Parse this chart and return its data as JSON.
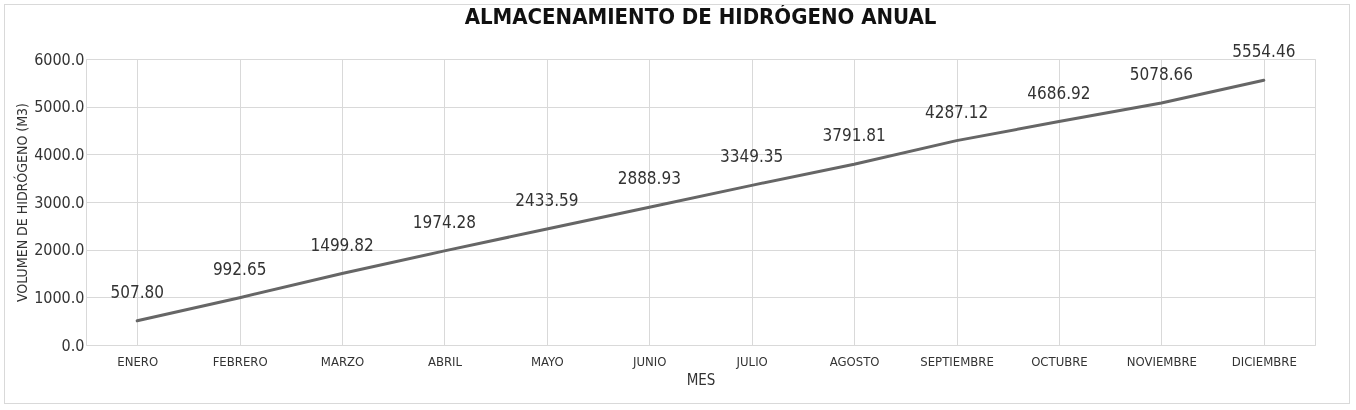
{
  "chart_data": {
    "type": "line",
    "title": "ALMACENAMIENTO DE HIDRÓGENO ANUAL",
    "xlabel": "MES",
    "ylabel": "VOLUMEN DE HIDRÓGENO (M3)",
    "categories": [
      "ENERO",
      "FEBRERO",
      "MARZO",
      "ABRIL",
      "MAYO",
      "JUNIO",
      "JULIO",
      "AGOSTO",
      "SEPTIEMBRE",
      "OCTUBRE",
      "NOVIEMBRE",
      "DICIEMBRE"
    ],
    "series": [
      {
        "color": "#666666",
        "values": [
          507.8,
          992.65,
          1499.82,
          1974.28,
          2433.59,
          2888.93,
          3349.35,
          3791.81,
          4287.12,
          4686.92,
          5078.66,
          5554.46
        ],
        "value_labels": [
          "507.80",
          "992.65",
          "1499.82",
          "1974.28",
          "2433.59",
          "2888.93",
          "3349.35",
          "3791.81",
          "4287.12",
          "4686.92",
          "5078.66",
          "5554.46"
        ]
      }
    ],
    "ylim": [
      0,
      6000
    ],
    "yticks": [
      {
        "value": 0,
        "label": "0.0"
      },
      {
        "value": 1000,
        "label": "1000.0"
      },
      {
        "value": 2000,
        "label": "2000.0"
      },
      {
        "value": 3000,
        "label": "3000.0"
      },
      {
        "value": 4000,
        "label": "4000.0"
      },
      {
        "value": 5000,
        "label": "5000.0"
      },
      {
        "value": 6000,
        "label": "6000.0"
      }
    ],
    "grid": true,
    "line_style": "solid"
  }
}
